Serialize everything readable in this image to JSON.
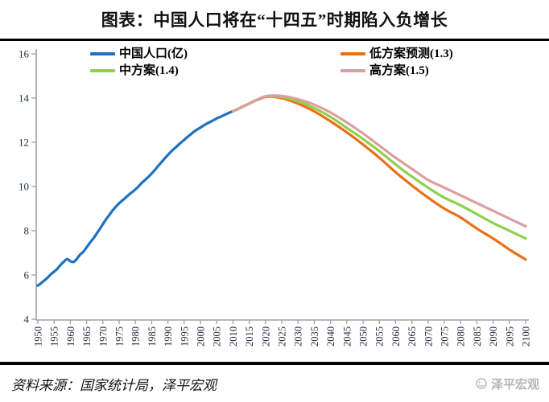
{
  "page": {
    "title": "图表：中国人口将在“十四五”时期陷入负增长"
  },
  "footer": {
    "source": "资料来源：国家统计局，泽平宏观",
    "watermark": "泽平宏观"
  },
  "colors": {
    "rule": "#000000",
    "axis": "#a0a0a0",
    "tick_label": "#223047",
    "title": "#111111",
    "watermark": "#b6b6b6",
    "historical_blue": "#1e71c0",
    "low_orange": "#eb7015",
    "mid_green": "#8fd04e",
    "high_pink": "#db9f9e"
  },
  "chart_data": {
    "type": "line",
    "title": "图表：中国人口将在“十四五”时期陷入负增长",
    "xlabel": "",
    "ylabel": "",
    "xlim": [
      1950,
      2100
    ],
    "xtick_step": 5,
    "ylim": [
      4,
      16
    ],
    "ytick_step": 2,
    "grid": false,
    "legend_position": "top-inside-two-columns",
    "series": [
      {
        "name": "中国人口(亿)",
        "color": "#1e71c0",
        "x_start": 1950,
        "x_step": 1,
        "values": [
          5.52,
          5.63,
          5.75,
          5.88,
          6.03,
          6.15,
          6.28,
          6.46,
          6.6,
          6.72,
          6.62,
          6.59,
          6.73,
          6.92,
          7.05,
          7.25,
          7.45,
          7.64,
          7.85,
          8.07,
          8.3,
          8.52,
          8.72,
          8.92,
          9.09,
          9.24,
          9.37,
          9.5,
          9.63,
          9.75,
          9.87,
          10.01,
          10.17,
          10.3,
          10.44,
          10.59,
          10.75,
          10.93,
          11.1,
          11.27,
          11.43,
          11.58,
          11.72,
          11.85,
          11.99,
          12.11,
          12.24,
          12.36,
          12.48,
          12.58,
          12.67,
          12.76,
          12.85,
          12.92,
          13.0,
          13.08,
          13.14,
          13.21,
          13.28,
          13.35,
          13.41,
          13.47,
          13.54,
          13.61,
          13.68,
          13.75,
          13.83,
          13.9,
          13.95,
          14.0
        ]
      },
      {
        "name": "低方案预测(1.3)",
        "color": "#eb7015",
        "x_start": 2010,
        "x_step": 5,
        "values": [
          13.41,
          13.75,
          14.05,
          14.0,
          13.75,
          13.4,
          12.95,
          12.45,
          11.9,
          11.3,
          10.65,
          10.05,
          9.5,
          9.0,
          8.6,
          8.1,
          7.65,
          7.15,
          6.7
        ]
      },
      {
        "name": "中方案(1.4)",
        "color": "#8fd04e",
        "x_start": 2010,
        "x_step": 5,
        "values": [
          13.41,
          13.75,
          14.07,
          14.05,
          13.85,
          13.55,
          13.15,
          12.65,
          12.15,
          11.6,
          11.0,
          10.45,
          9.95,
          9.5,
          9.15,
          8.75,
          8.35,
          8.0,
          7.65
        ]
      },
      {
        "name": "高方案(1.5)",
        "color": "#db9f9e",
        "x_start": 2010,
        "x_step": 5,
        "values": [
          13.41,
          13.75,
          14.08,
          14.1,
          13.95,
          13.7,
          13.35,
          12.9,
          12.4,
          11.85,
          11.3,
          10.8,
          10.3,
          9.95,
          9.6,
          9.25,
          8.9,
          8.55,
          8.2
        ]
      }
    ]
  }
}
